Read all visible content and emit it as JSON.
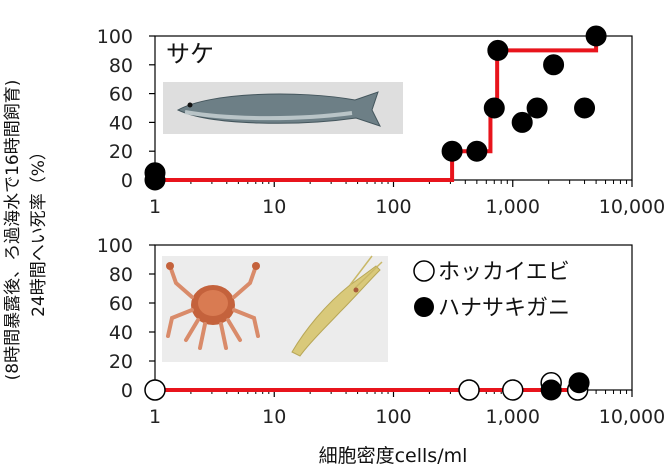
{
  "chart_data": [
    {
      "type": "scatter",
      "panel": "top",
      "annotation": "サケ",
      "x_scale": "log",
      "xlim": [
        1,
        10000
      ],
      "ylim": [
        0,
        100
      ],
      "x_ticks": [
        "1",
        "10",
        "100",
        "1,000",
        "10,000"
      ],
      "y_ticks": [
        "0",
        "20",
        "40",
        "60",
        "80",
        "100"
      ],
      "series": [
        {
          "points": [
            {
              "x": 1,
              "y": 0
            },
            {
              "x": 1,
              "y": 5
            },
            {
              "x": 310,
              "y": 20
            },
            {
              "x": 500,
              "y": 20
            },
            {
              "x": 700,
              "y": 50
            },
            {
              "x": 750,
              "y": 90
            },
            {
              "x": 1200,
              "y": 40
            },
            {
              "x": 1600,
              "y": 50
            },
            {
              "x": 2200,
              "y": 80
            },
            {
              "x": 4000,
              "y": 50
            },
            {
              "x": 5000,
              "y": 100
            }
          ],
          "color": "#000000"
        }
      ],
      "step_line": {
        "color": "#e8141c",
        "points": [
          {
            "x": 1,
            "y": 0
          },
          {
            "x": 310,
            "y": 0
          },
          {
            "x": 310,
            "y": 20
          },
          {
            "x": 650,
            "y": 20
          },
          {
            "x": 650,
            "y": 50
          },
          {
            "x": 740,
            "y": 50
          },
          {
            "x": 740,
            "y": 90
          },
          {
            "x": 5000,
            "y": 90
          },
          {
            "x": 5000,
            "y": 100
          }
        ]
      }
    },
    {
      "type": "scatter",
      "panel": "bottom",
      "x_scale": "log",
      "xlim": [
        1,
        10000
      ],
      "ylim": [
        0,
        100
      ],
      "x_ticks": [
        "1",
        "10",
        "100",
        "1,000",
        "10,000"
      ],
      "y_ticks": [
        "0",
        "20",
        "40",
        "60",
        "80",
        "100"
      ],
      "series": [
        {
          "name": "ホッカイエビ",
          "marker": "open",
          "points": [
            {
              "x": 1,
              "y": 0
            },
            {
              "x": 430,
              "y": 0
            },
            {
              "x": 1000,
              "y": 0
            },
            {
              "x": 2100,
              "y": 5
            },
            {
              "x": 3500,
              "y": 0
            }
          ]
        },
        {
          "name": "ハナサキガニ",
          "marker": "filled",
          "points": [
            {
              "x": 2100,
              "y": 0
            },
            {
              "x": 3600,
              "y": 5
            }
          ]
        }
      ],
      "step_line": {
        "color": "#e8141c",
        "points": [
          {
            "x": 1,
            "y": 0
          },
          {
            "x": 3600,
            "y": 0
          }
        ]
      }
    }
  ],
  "y_axis_label_line1": "24時間へい死率（%）",
  "y_axis_label_line2": "(8時間暴露後、ろ過海水で16時間飼育)",
  "x_axis_label": "細胞密度cells/ml",
  "colors": {
    "step": "#e8141c",
    "marker": "#000000",
    "photo_bg": "#dcdcdc"
  }
}
